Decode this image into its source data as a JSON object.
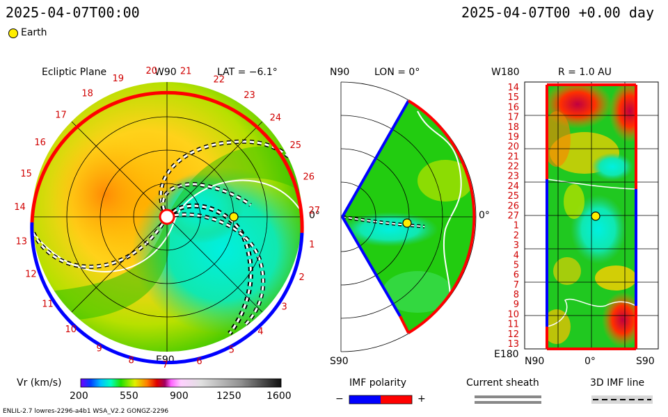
{
  "header": {
    "left_time": "2025-04-07T00:00",
    "right_time": "2025-04-07T00 +0.00 day"
  },
  "legend_earth": "Earth",
  "panel_ecliptic": {
    "title": "Ecliptic Plane",
    "top_label": "W90",
    "bottom_label": "E90",
    "right_label": "0°",
    "lat_label": "LAT = −6.1°",
    "carrington_numbers": [
      "20",
      "21",
      "22",
      "23",
      "24",
      "25",
      "26",
      "27",
      "1",
      "2",
      "3",
      "4",
      "5",
      "6",
      "7",
      "8",
      "9",
      "10",
      "11",
      "12",
      "13",
      "14",
      "15",
      "16",
      "17",
      "18",
      "19"
    ]
  },
  "panel_meridional": {
    "top_label": "N90",
    "bottom_label": "S90",
    "right_label": "0°",
    "lon_label": "LON = 0°"
  },
  "panel_radial": {
    "title": "R = 1.0 AU",
    "top_left": "W180",
    "bottom_left": "E180",
    "x_labels": [
      "N90",
      "0°",
      "S90"
    ],
    "y_numbers": [
      "14",
      "15",
      "16",
      "17",
      "18",
      "19",
      "20",
      "21",
      "22",
      "23",
      "24",
      "25",
      "26",
      "27",
      "1",
      "2",
      "3",
      "4",
      "5",
      "6",
      "7",
      "8",
      "9",
      "10",
      "11",
      "12",
      "13"
    ]
  },
  "colorbar": {
    "label": "Vr (km/s)",
    "ticks": [
      "200",
      "550",
      "900",
      "1250",
      "1600"
    ],
    "min": 200,
    "max": 1600
  },
  "imf_polarity": {
    "title": "IMF polarity",
    "minus": "−",
    "plus": "+"
  },
  "current_sheath": "Current sheath",
  "imf_line": "3D IMF line",
  "footer": "ENLIL-2.7 lowres-2296-a4b1 WSA_V2.2 GONGZ-2296",
  "colors": {
    "red_polarity": "#ff0000",
    "blue_polarity": "#0000ff",
    "earth": "#ffee00"
  },
  "chart_data": {
    "type": "heatmap",
    "title": "",
    "quantity": "Vr (km/s)",
    "value_range": [
      200,
      1600
    ],
    "panels": [
      "Ecliptic Plane",
      "Meridional LON = 0°",
      "R = 1.0 AU"
    ]
  }
}
